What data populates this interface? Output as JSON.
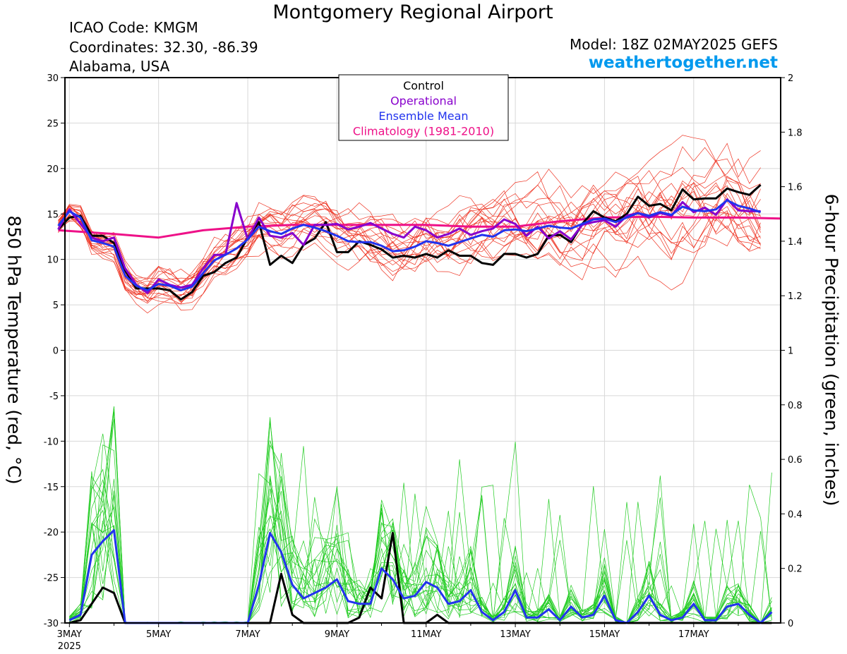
{
  "header": {
    "title": "Montgomery Regional Airport",
    "icao": "ICAO Code: KMGM",
    "coordinates": "Coordinates: 32.30, -86.39",
    "region": "Alabama, USA",
    "model": "Model: 18Z 02MAY2025 GEFS",
    "site": "weathertogether.net"
  },
  "chart_data": {
    "type": "line",
    "ylabel_left": "850 hPa Temperature (red, °C)",
    "ylabel_right": "6-hour Precipitation (green, inches)",
    "ylim_left": [
      -30,
      30
    ],
    "ylim_right": [
      0,
      2
    ],
    "yticks_left": [
      "30",
      "25",
      "20",
      "15",
      "10",
      "5",
      "0",
      "-5",
      "-10",
      "-15",
      "-20",
      "-25",
      "-30"
    ],
    "yticks_right": [
      "2",
      "1.8",
      "1.6",
      "1.4",
      "1.2",
      "1",
      "0.8",
      "0.6",
      "0.4",
      "0.2",
      "0"
    ],
    "x_unit": "days since 3MAY 00Z (6-hourly)",
    "xlim": [
      -0.1,
      15.95
    ],
    "xticks": [
      {
        "x": 0,
        "label": "3MAY",
        "sub": "2025"
      },
      {
        "x": 2,
        "label": "5MAY"
      },
      {
        "x": 4,
        "label": "7MAY"
      },
      {
        "x": 6,
        "label": "9MAY"
      },
      {
        "x": 8,
        "label": "11MAY"
      },
      {
        "x": 10,
        "label": "13MAY"
      },
      {
        "x": 12,
        "label": "15MAY"
      },
      {
        "x": 14,
        "label": "17MAY"
      }
    ],
    "legend": [
      "Control",
      "Operational",
      "Ensemble Mean",
      "Climatology (1981-2010)"
    ],
    "legend_placement": "top-center",
    "colors": {
      "control": "#000000",
      "operational": "#8800cc",
      "mean": "#2233ee",
      "climatology": "#ee1188",
      "members_temp": "#ee3322",
      "members_precip": "#22cc22"
    },
    "series": [
      {
        "name": "Control",
        "variable": "temp_850",
        "x0": -0.25,
        "values": [
          13.3,
          14.6,
          14.8,
          12.6,
          12.6,
          11.8,
          8.8,
          6.8,
          6.8,
          6.8,
          6.6,
          5.6,
          6.4,
          8.2,
          8.6,
          9.6,
          10.2,
          12.4,
          14.1,
          9.4,
          10.4,
          9.6,
          11.6,
          12.3,
          14.1,
          10.8,
          10.8,
          12.0,
          11.6,
          11.1,
          10.2,
          10.4,
          10.2,
          10.6,
          10.2,
          11.0,
          10.4,
          10.4,
          9.6,
          9.4,
          10.6,
          10.6,
          10.2,
          10.6,
          12.6,
          12.7,
          11.9,
          13.9,
          15.3,
          14.6,
          14.2,
          15.0,
          16.9,
          15.9,
          16.1,
          15.4,
          17.7,
          16.6,
          16.7,
          16.7,
          17.8,
          17.4,
          17.1,
          18.2
        ]
      },
      {
        "name": "Operational",
        "variable": "temp_850",
        "x0": -0.25,
        "values": [
          13.3,
          15.5,
          13.9,
          12.4,
          12.0,
          12.4,
          9.0,
          7.2,
          6.3,
          7.8,
          7.2,
          6.9,
          7.2,
          9.0,
          10.5,
          10.5,
          16.2,
          12.2,
          14.6,
          12.6,
          12.4,
          12.9,
          11.6,
          13.8,
          13.8,
          13.9,
          13.3,
          13.6,
          14.0,
          13.4,
          12.8,
          12.4,
          13.6,
          13.2,
          12.4,
          12.8,
          13.4,
          12.7,
          13.1,
          13.4,
          14.4,
          13.9,
          12.6,
          13.6,
          12.3,
          13.1,
          12.2,
          13.8,
          14.1,
          14.3,
          13.6,
          14.8,
          15.1,
          14.6,
          15.1,
          14.8,
          16.3,
          15.2,
          15.7,
          14.9,
          16.6,
          15.4,
          15.3,
          15.3
        ]
      },
      {
        "name": "Ensemble Mean",
        "variable": "temp_850",
        "x0": -0.25,
        "values": [
          13.7,
          15.3,
          14.6,
          12.1,
          11.8,
          11.4,
          8.2,
          7.1,
          6.6,
          7.3,
          7.1,
          6.6,
          7.0,
          8.5,
          9.9,
          10.5,
          11.2,
          12.2,
          13.6,
          13.1,
          12.8,
          13.4,
          13.8,
          13.5,
          13.1,
          12.6,
          12.0,
          11.9,
          11.9,
          11.5,
          10.9,
          11.0,
          11.4,
          12.0,
          11.8,
          11.5,
          11.9,
          12.3,
          12.7,
          12.5,
          13.2,
          13.3,
          13.1,
          13.4,
          13.7,
          13.5,
          13.4,
          13.9,
          14.4,
          14.5,
          14.1,
          14.6,
          15.1,
          14.8,
          15.2,
          14.9,
          15.8,
          15.4,
          15.3,
          15.5,
          16.5,
          15.9,
          15.6,
          15.2
        ]
      },
      {
        "name": "Climatology (1981-2010)",
        "variable": "temp_850",
        "x": [
          -0.25,
          1,
          2,
          3,
          4,
          5,
          6,
          7,
          8,
          9,
          10,
          11,
          12,
          13,
          14,
          15,
          15.95
        ],
        "values": [
          13.2,
          12.8,
          12.4,
          13.2,
          13.6,
          13.8,
          13.8,
          13.8,
          13.8,
          13.6,
          13.6,
          14.2,
          14.6,
          14.7,
          14.6,
          14.6,
          14.5
        ]
      },
      {
        "name": "Control",
        "variable": "precip_6h",
        "x0": 0,
        "values": [
          0,
          0.01,
          0.07,
          0.13,
          0.11,
          0,
          0,
          0,
          0,
          0,
          0,
          0,
          0,
          0,
          0,
          0,
          0,
          0,
          0,
          0.18,
          0.03,
          0,
          0,
          0,
          0,
          0,
          0.02,
          0.13,
          0.09,
          0.33,
          0,
          0,
          0,
          0.03,
          0,
          0,
          0,
          0,
          0,
          0,
          0,
          0,
          0,
          0,
          0,
          0,
          0,
          0,
          0,
          0,
          0,
          0,
          0,
          0,
          0,
          0,
          0,
          0,
          0,
          0,
          0,
          0,
          0,
          0
        ]
      },
      {
        "name": "Ensemble Mean",
        "variable": "precip_6h",
        "x0": 0,
        "values": [
          0.01,
          0.03,
          0.25,
          0.3,
          0.34,
          0,
          0,
          0,
          0,
          0,
          0,
          0,
          0,
          0,
          0,
          0,
          0,
          0.14,
          0.33,
          0.26,
          0.14,
          0.09,
          0.11,
          0.13,
          0.16,
          0.08,
          0.07,
          0.07,
          0.2,
          0.16,
          0.09,
          0.1,
          0.15,
          0.13,
          0.07,
          0.08,
          0.12,
          0.04,
          0.01,
          0.04,
          0.12,
          0.02,
          0.02,
          0.05,
          0.01,
          0.06,
          0.02,
          0.03,
          0.1,
          0.01,
          0,
          0.04,
          0.1,
          0.03,
          0.01,
          0.02,
          0.07,
          0.01,
          0.01,
          0.06,
          0.07,
          0.03,
          0,
          0.04
        ]
      }
    ]
  }
}
